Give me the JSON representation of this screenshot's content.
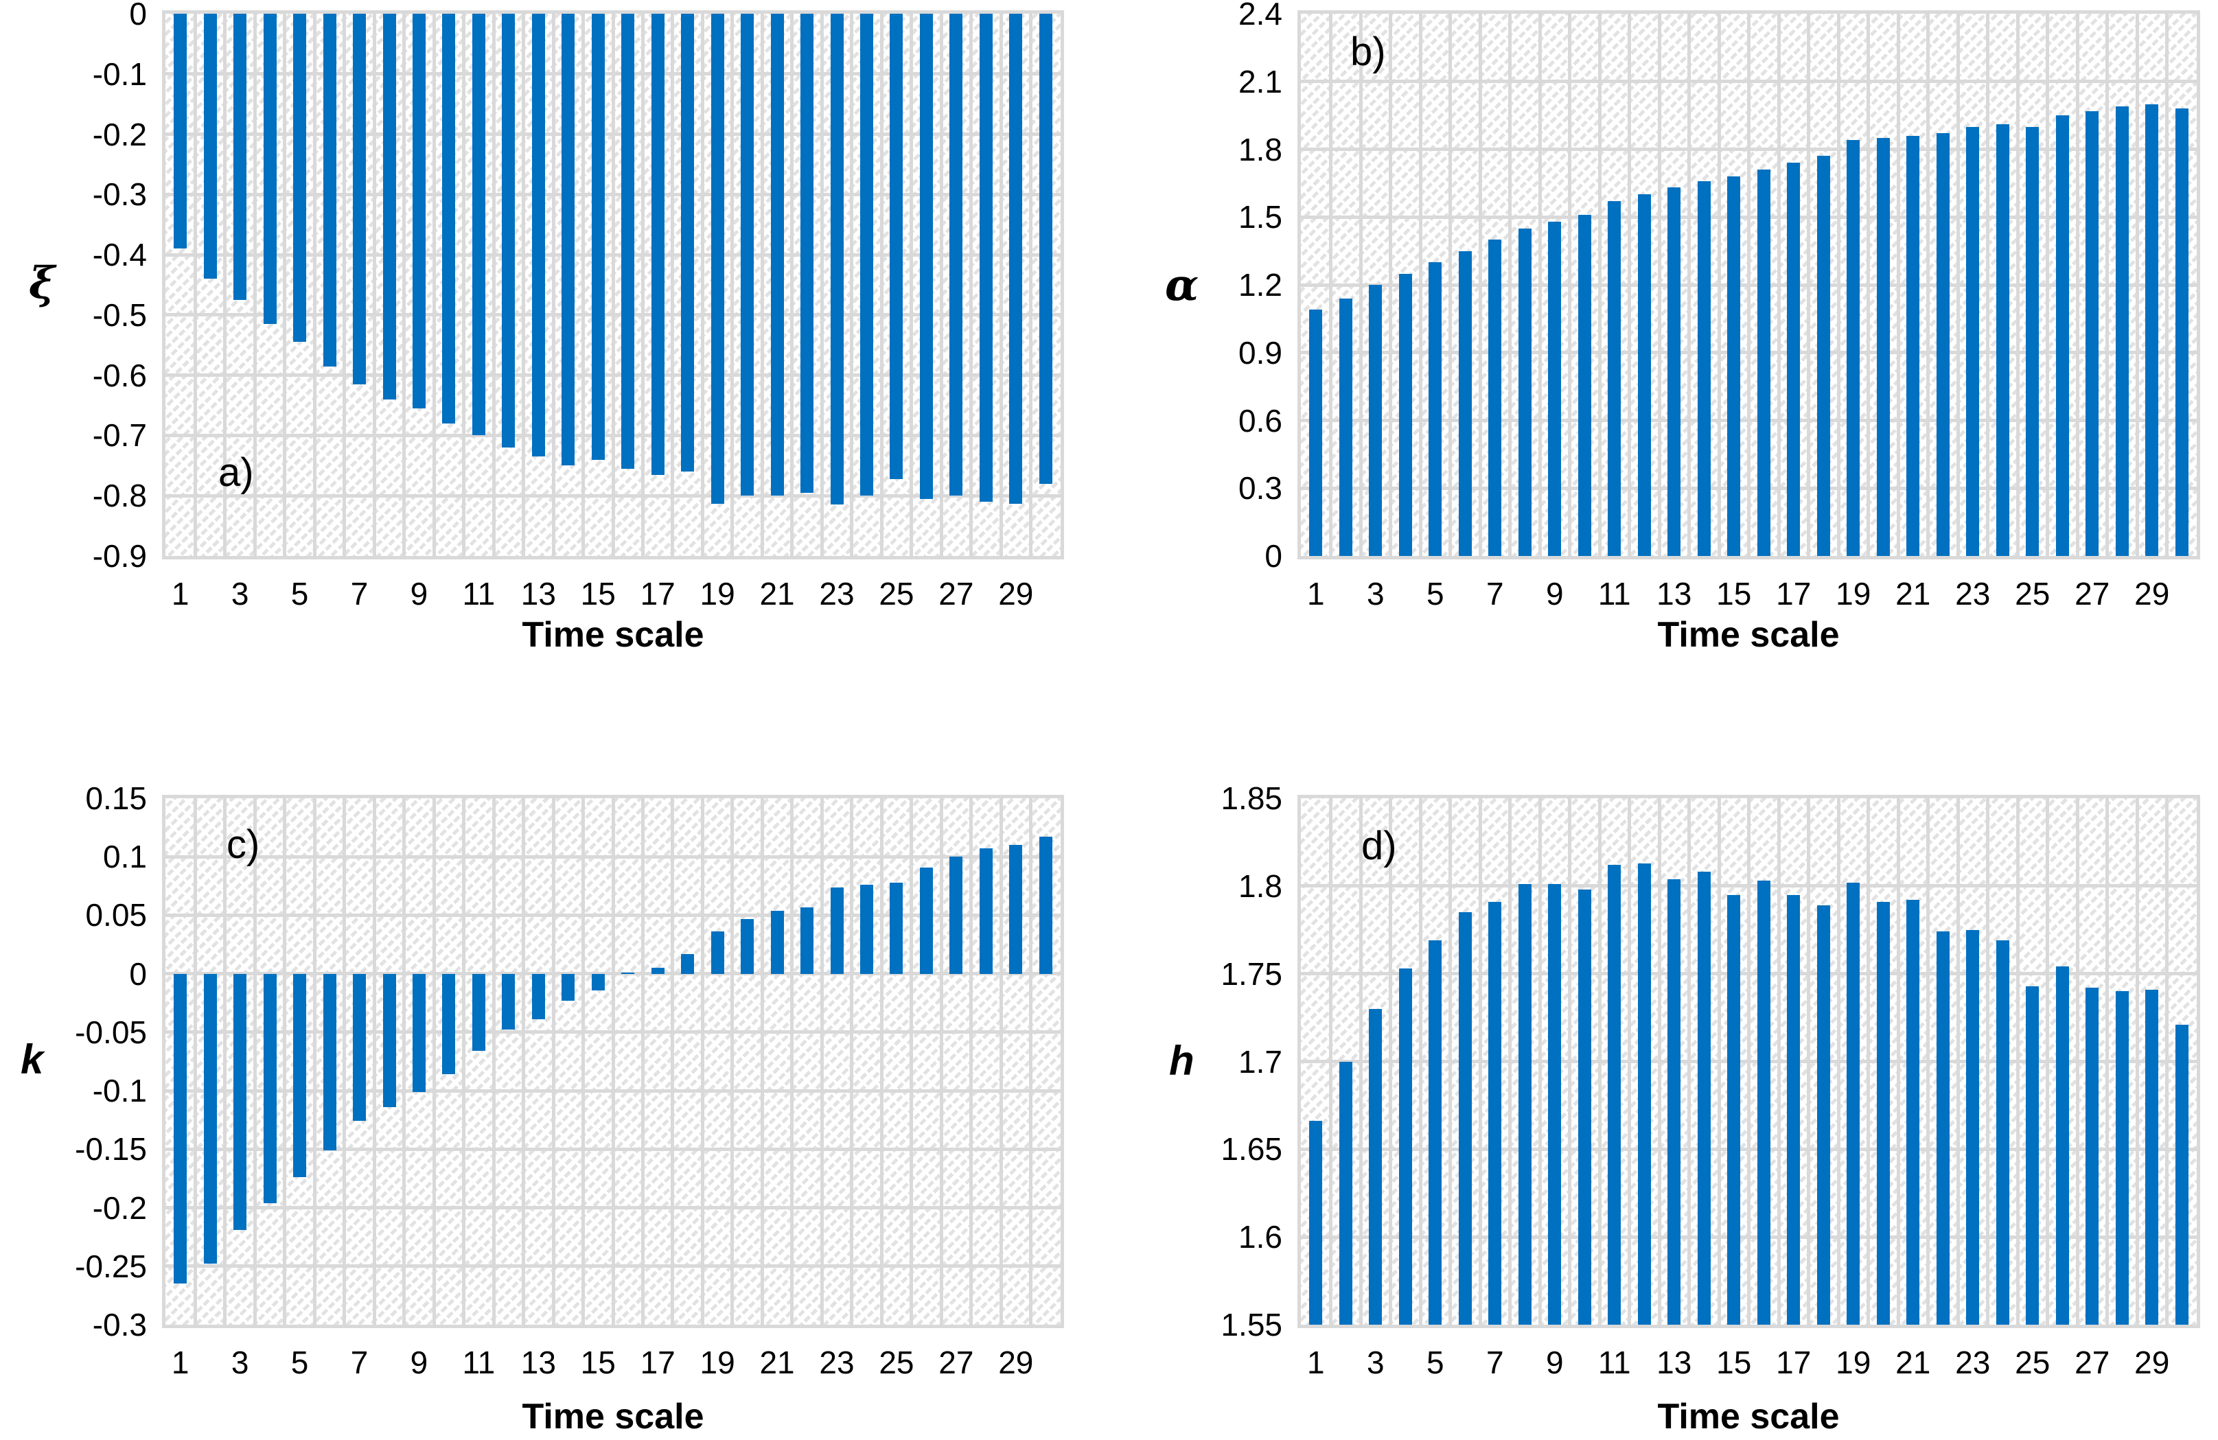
{
  "page": {
    "background": "#ffffff"
  },
  "colors": {
    "bar": "#0070C0",
    "gridline": "#D9D9D9",
    "hatch": "#E2E2E2",
    "text": "#000000"
  },
  "chart_data": [
    {
      "id": "a",
      "type": "bar",
      "panel_label": "a)",
      "xlabel": "Time scale",
      "ylabel": "ξ",
      "ylim": [
        -0.9,
        0
      ],
      "grid": "on",
      "bar_color": "#0070C0",
      "yticks": [
        "0",
        "-0.1",
        "-0.2",
        "-0.3",
        "-0.4",
        "-0.5",
        "-0.6",
        "-0.7",
        "-0.8",
        "-0.9"
      ],
      "xticks": [
        "1",
        "3",
        "5",
        "7",
        "9",
        "11",
        "13",
        "15",
        "17",
        "19",
        "21",
        "23",
        "25",
        "27",
        "29"
      ],
      "x": [
        1,
        2,
        3,
        4,
        5,
        6,
        7,
        8,
        9,
        10,
        11,
        12,
        13,
        14,
        15,
        16,
        17,
        18,
        19,
        20,
        21,
        22,
        23,
        24,
        25,
        26,
        27,
        28,
        29,
        30
      ],
      "values": [
        -0.39,
        -0.44,
        -0.475,
        -0.515,
        -0.545,
        -0.585,
        -0.615,
        -0.64,
        -0.655,
        -0.68,
        -0.7,
        -0.72,
        -0.735,
        -0.75,
        -0.74,
        -0.755,
        -0.765,
        -0.76,
        -0.813,
        -0.8,
        -0.8,
        -0.795,
        -0.815,
        -0.8,
        -0.772,
        -0.805,
        -0.8,
        -0.81,
        -0.813,
        -0.78
      ]
    },
    {
      "id": "b",
      "type": "bar",
      "panel_label": "b)",
      "xlabel": "Time scale",
      "ylabel": "α",
      "ylim": [
        0,
        2.4
      ],
      "grid": "on",
      "bar_color": "#0070C0",
      "yticks": [
        "2.4",
        "2.1",
        "1.8",
        "1.5",
        "1.2",
        "0.9",
        "0.6",
        "0.3",
        "0"
      ],
      "xticks": [
        "1",
        "3",
        "5",
        "7",
        "9",
        "11",
        "13",
        "15",
        "17",
        "19",
        "21",
        "23",
        "25",
        "27",
        "29"
      ],
      "x": [
        1,
        2,
        3,
        4,
        5,
        6,
        7,
        8,
        9,
        10,
        11,
        12,
        13,
        14,
        15,
        16,
        17,
        18,
        19,
        20,
        21,
        22,
        23,
        24,
        25,
        26,
        27,
        28,
        29,
        30
      ],
      "values": [
        1.09,
        1.14,
        1.2,
        1.25,
        1.3,
        1.35,
        1.4,
        1.45,
        1.48,
        1.51,
        1.57,
        1.6,
        1.63,
        1.66,
        1.68,
        1.71,
        1.74,
        1.77,
        1.84,
        1.85,
        1.86,
        1.87,
        1.9,
        1.91,
        1.9,
        1.95,
        1.97,
        1.99,
        2.0,
        1.98
      ]
    },
    {
      "id": "c",
      "type": "bar",
      "panel_label": "c)",
      "xlabel": "Time scale",
      "ylabel": "k",
      "ylim": [
        -0.3,
        0.15
      ],
      "grid": "on",
      "bar_color": "#0070C0",
      "yticks": [
        "0.15",
        "0.1",
        "0.05",
        "0",
        "-0.05",
        "-0.1",
        "-0.15",
        "-0.2",
        "-0.25",
        "-0.3"
      ],
      "xticks": [
        "1",
        "3",
        "5",
        "7",
        "9",
        "11",
        "13",
        "15",
        "17",
        "19",
        "21",
        "23",
        "25",
        "27",
        "29"
      ],
      "x": [
        1,
        2,
        3,
        4,
        5,
        6,
        7,
        8,
        9,
        10,
        11,
        12,
        13,
        14,
        15,
        16,
        17,
        18,
        19,
        20,
        21,
        22,
        23,
        24,
        25,
        26,
        27,
        28,
        29,
        30
      ],
      "values": [
        -0.265,
        -0.248,
        -0.219,
        -0.196,
        -0.174,
        -0.151,
        -0.126,
        -0.114,
        -0.101,
        -0.086,
        -0.066,
        -0.048,
        -0.039,
        -0.023,
        -0.014,
        0.001,
        0.005,
        0.017,
        0.036,
        0.047,
        0.054,
        0.057,
        0.074,
        0.076,
        0.078,
        0.091,
        0.1,
        0.107,
        0.11,
        0.117
      ]
    },
    {
      "id": "d",
      "type": "bar",
      "panel_label": "d)",
      "xlabel": "Time scale",
      "ylabel": "h",
      "ylim": [
        1.55,
        1.85
      ],
      "grid": "on",
      "bar_color": "#0070C0",
      "yticks": [
        "1.85",
        "1.8",
        "1.75",
        "1.7",
        "1.65",
        "1.6",
        "1.55"
      ],
      "xticks": [
        "1",
        "3",
        "5",
        "7",
        "9",
        "11",
        "13",
        "15",
        "17",
        "19",
        "21",
        "23",
        "25",
        "27",
        "29"
      ],
      "x": [
        1,
        2,
        3,
        4,
        5,
        6,
        7,
        8,
        9,
        10,
        11,
        12,
        13,
        14,
        15,
        16,
        17,
        18,
        19,
        20,
        21,
        22,
        23,
        24,
        25,
        26,
        27,
        28,
        29,
        30
      ],
      "values": [
        1.666,
        1.7,
        1.73,
        1.753,
        1.769,
        1.785,
        1.791,
        1.801,
        1.801,
        1.798,
        1.812,
        1.813,
        1.804,
        1.808,
        1.795,
        1.803,
        1.795,
        1.789,
        1.802,
        1.791,
        1.792,
        1.774,
        1.775,
        1.769,
        1.743,
        1.754,
        1.742,
        1.74,
        1.741,
        1.721
      ]
    }
  ]
}
